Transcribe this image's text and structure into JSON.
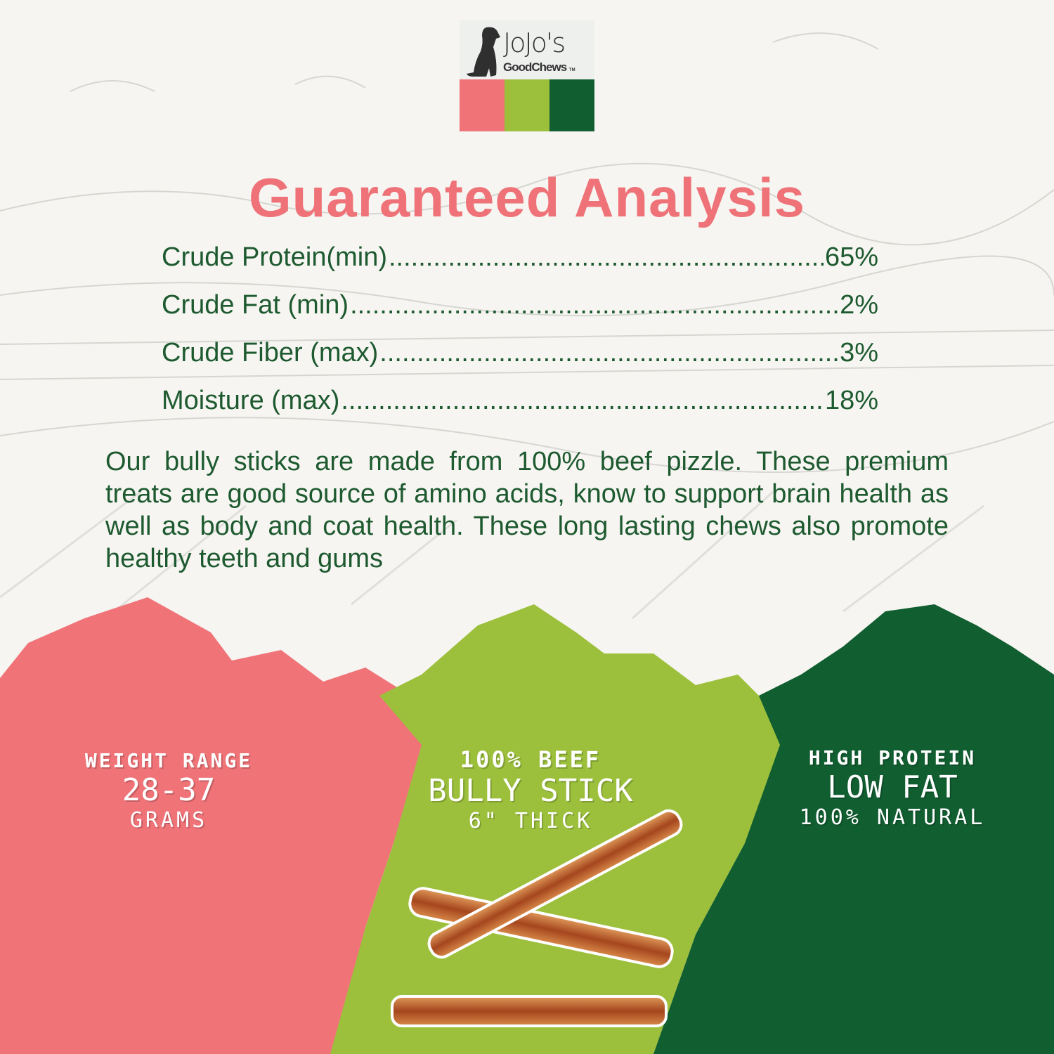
{
  "brand": {
    "name_line1": "JoJo's",
    "name_line2": "GoodChews",
    "trademark": "TM",
    "icon": "dog-silhouette-icon",
    "colors": [
      "#F07378",
      "#9CC03C",
      "#115E31"
    ]
  },
  "title": "Guaranteed Analysis",
  "analysis": [
    {
      "label": "Crude Protein(min)",
      "value": "65%"
    },
    {
      "label": "Crude Fat (min)",
      "value": "2%"
    },
    {
      "label": "Crude Fiber (max)",
      "value": "3%"
    },
    {
      "label": "Moisture (max)",
      "value": "18%"
    }
  ],
  "description": "Our bully sticks are made from 100% beef pizzle. These premium treats are good source of amino acids, know to support brain health as well as body and coat health. These long lasting chews also promote healthy teeth and gums",
  "panels": [
    {
      "line1": "WEIGHT RANGE",
      "line2": "28-37",
      "line3": "GRAMS",
      "color": "#F07378"
    },
    {
      "line1": "100% BEEF",
      "line2": "BULLY STICK",
      "line3": "6\" THICK",
      "color": "#9CC03C"
    },
    {
      "line1": "HIGH PROTEIN",
      "line2": "LOW FAT",
      "line3": "100% NATURAL",
      "color": "#115E31"
    }
  ],
  "text_color": "#1E5A30",
  "title_color": "#EE7277"
}
